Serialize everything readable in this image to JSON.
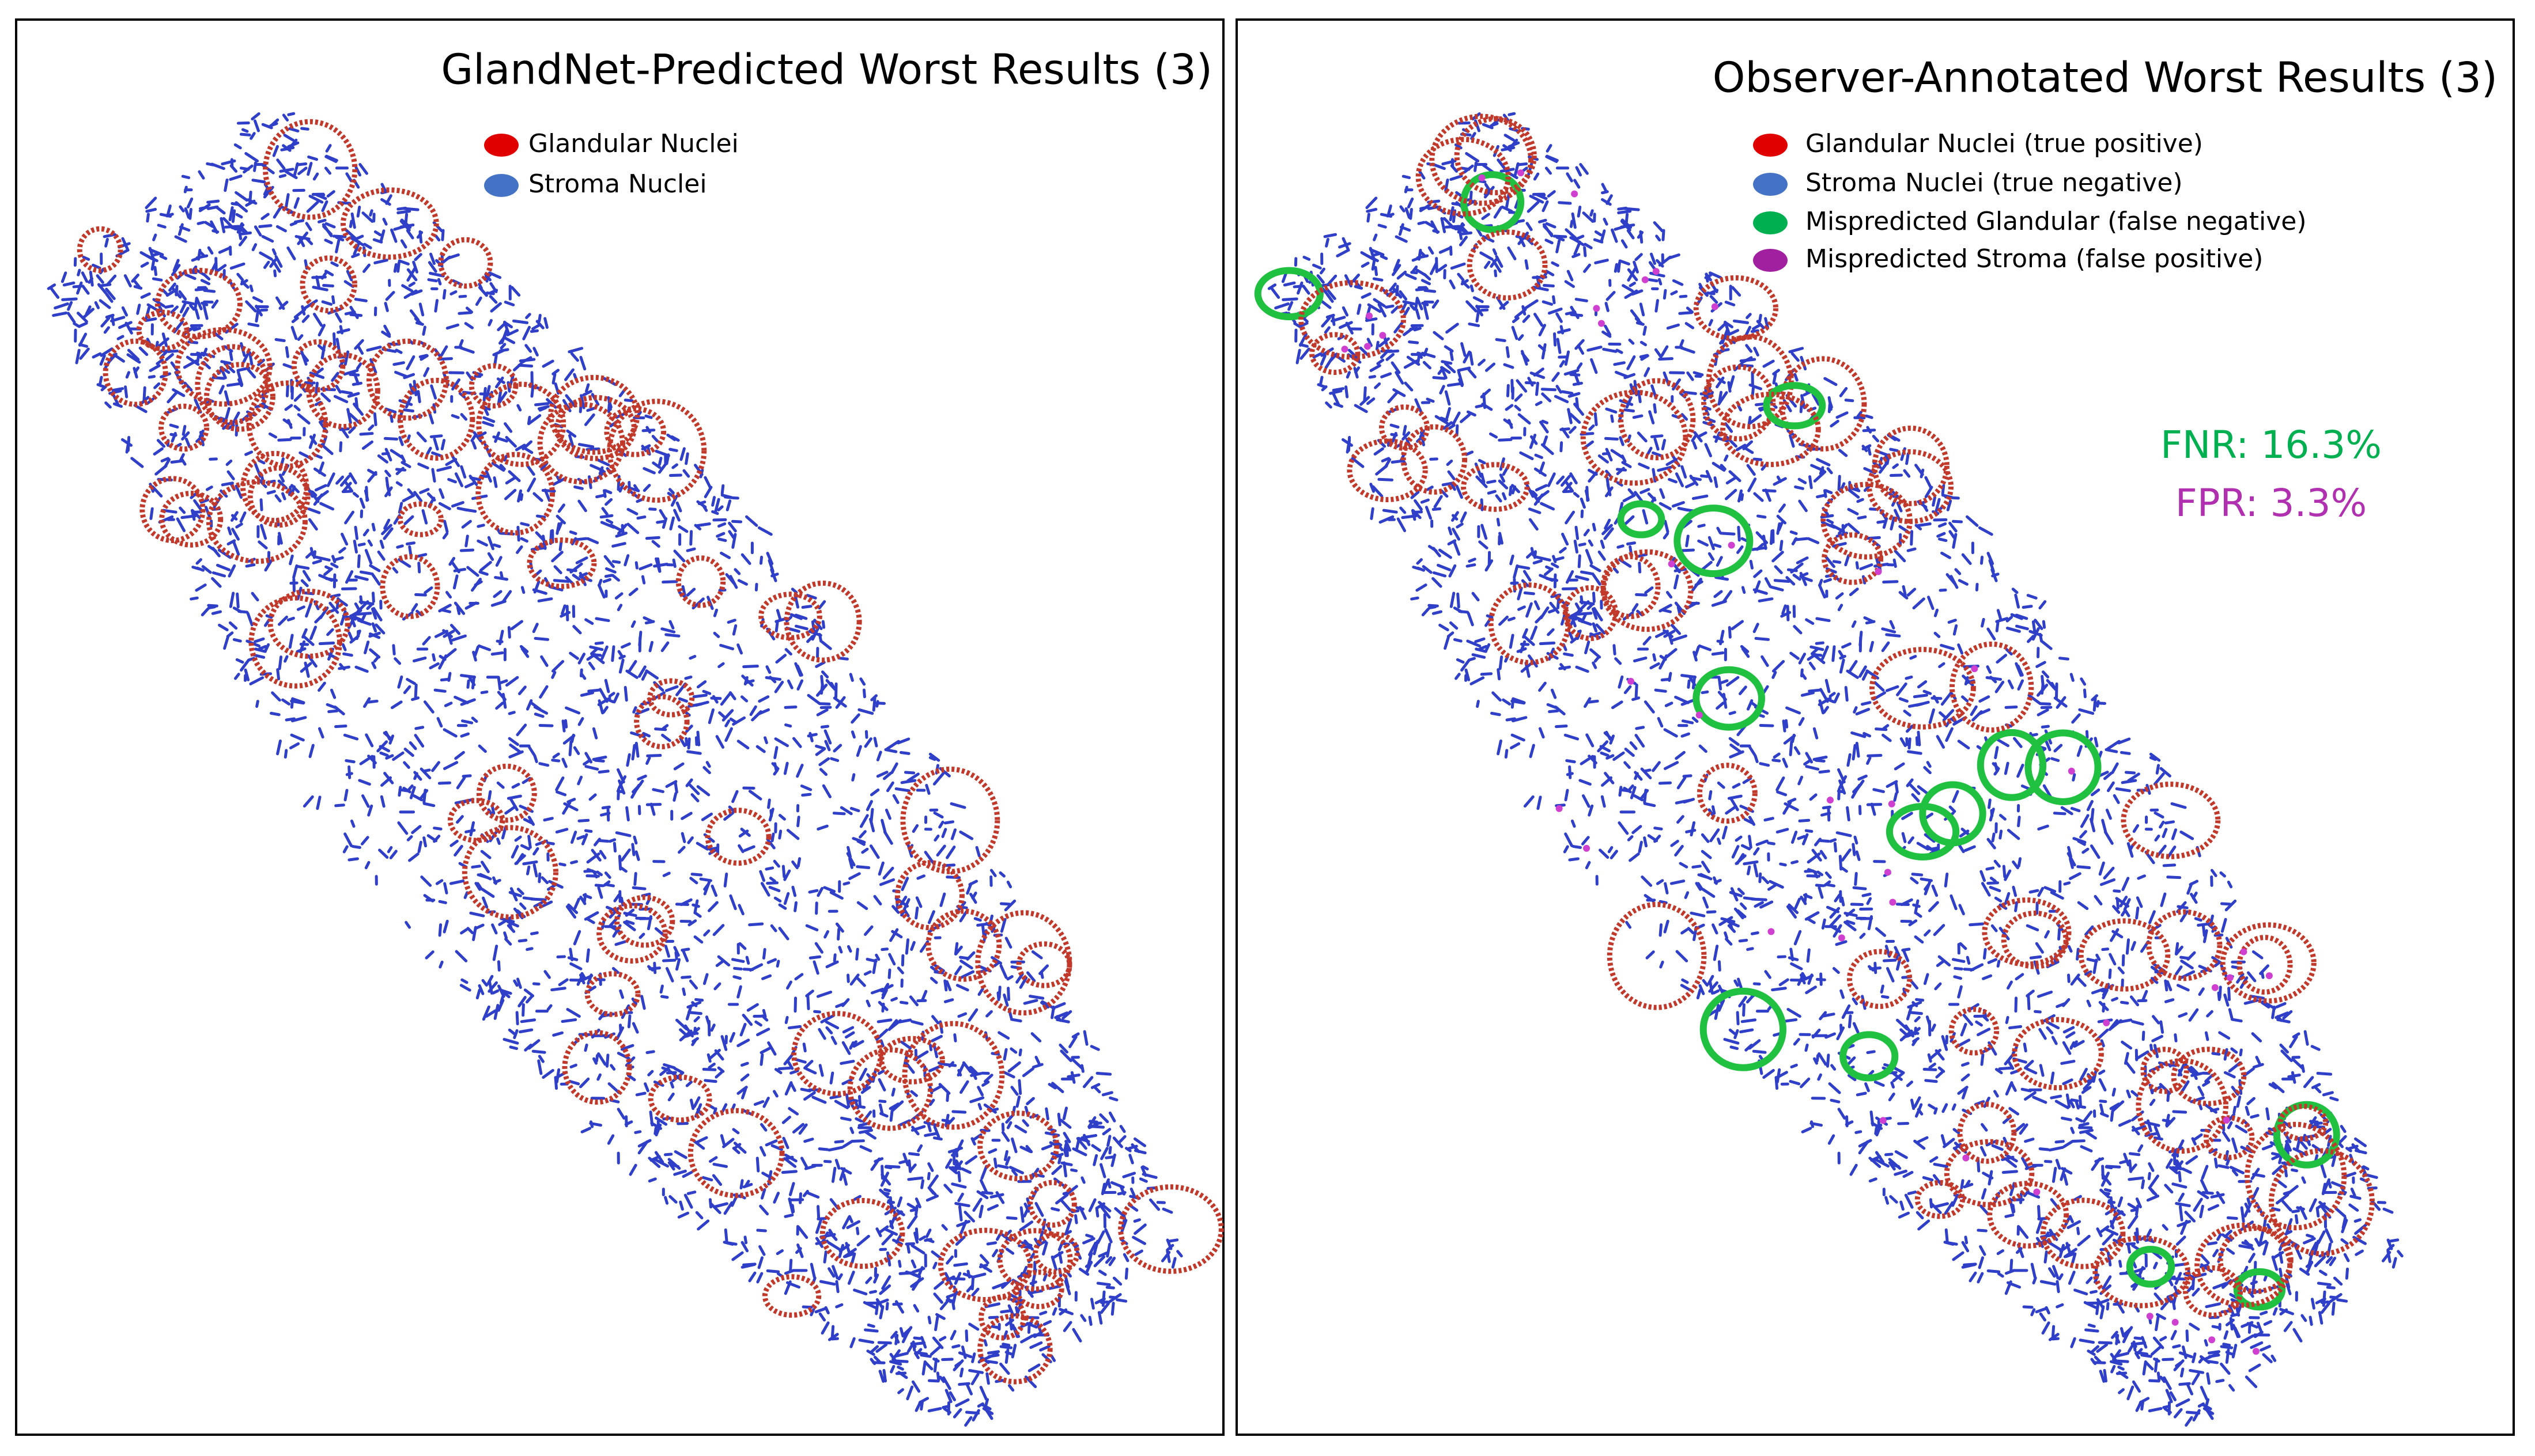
{
  "left_panel": {
    "title": "GlandNet-Predicted Worst Results (3)",
    "legend": [
      "Glandular Nuclei",
      "Stroma Nuclei"
    ]
  },
  "right_panel": {
    "title": "Observer-Annotated Worst Results (3)",
    "legend": [
      "Glandular Nuclei (true positive)",
      "Stroma Nuclei (true negative)",
      "Mispredicted Glandular (false negative)",
      "Mispredicted Stroma (false positive)"
    ],
    "metrics": [
      "FNR: 16.3%",
      "FPR: 3.3%"
    ]
  }
}
